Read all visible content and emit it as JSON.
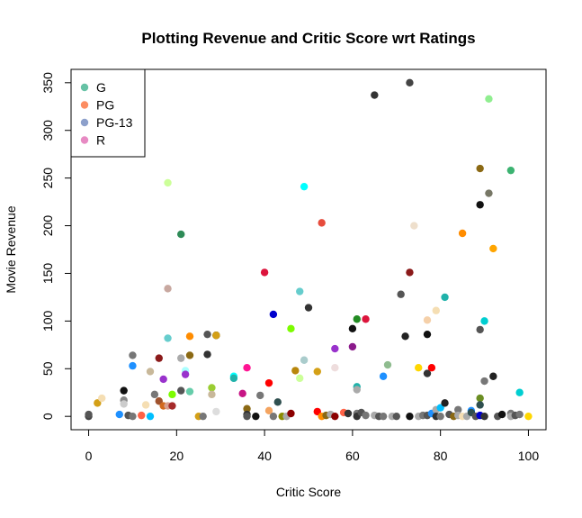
{
  "chart_data": {
    "type": "scatter",
    "title": "Plotting Revenue and Critic Score wrt Ratings",
    "xlabel": "Critic Score",
    "ylabel": "Movie Revenue",
    "xlim": [
      -4,
      104
    ],
    "ylim": [
      -14,
      364
    ],
    "xticks": [
      0,
      20,
      40,
      60,
      80,
      100
    ],
    "yticks": [
      0,
      50,
      100,
      150,
      200,
      250,
      300,
      350
    ],
    "grid": false,
    "legend": {
      "placement": "top-left",
      "entries": [
        {
          "label": "G",
          "color": "#66c2a5"
        },
        {
          "label": "PG",
          "color": "#fc8d62"
        },
        {
          "label": "PG-13",
          "color": "#8da0cb"
        },
        {
          "label": "R",
          "color": "#e78ac3"
        }
      ]
    },
    "points": [
      {
        "x": 0,
        "y": 0,
        "color": "#444444"
      },
      {
        "x": 0,
        "y": 2,
        "color": "#555555"
      },
      {
        "x": 2,
        "y": 14,
        "color": "#d4a017"
      },
      {
        "x": 3,
        "y": 19,
        "color": "#f5deb3"
      },
      {
        "x": 7,
        "y": 2,
        "color": "#1e90ff"
      },
      {
        "x": 8,
        "y": 27,
        "color": "#111111"
      },
      {
        "x": 8,
        "y": 17,
        "color": "#888888"
      },
      {
        "x": 8,
        "y": 13,
        "color": "#cccccc"
      },
      {
        "x": 9,
        "y": 1,
        "color": "#555555"
      },
      {
        "x": 10,
        "y": 64,
        "color": "#777777"
      },
      {
        "x": 10,
        "y": 53,
        "color": "#1e90ff"
      },
      {
        "x": 10,
        "y": 0,
        "color": "#777777"
      },
      {
        "x": 12,
        "y": 1,
        "color": "#ff6347"
      },
      {
        "x": 13,
        "y": 12,
        "color": "#f5deb3"
      },
      {
        "x": 14,
        "y": 47,
        "color": "#c8b89a"
      },
      {
        "x": 14,
        "y": 0,
        "color": "#00bfff"
      },
      {
        "x": 15,
        "y": 23,
        "color": "#777777"
      },
      {
        "x": 16,
        "y": 61,
        "color": "#8b1a1a"
      },
      {
        "x": 16,
        "y": 16,
        "color": "#a0522d"
      },
      {
        "x": 17,
        "y": 39,
        "color": "#9932cc"
      },
      {
        "x": 17,
        "y": 11,
        "color": "#d2691e"
      },
      {
        "x": 18,
        "y": 245,
        "color": "#ccff99"
      },
      {
        "x": 18,
        "y": 134,
        "color": "#c8a8a0"
      },
      {
        "x": 18,
        "y": 82,
        "color": "#66cdcd"
      },
      {
        "x": 18,
        "y": 11,
        "color": "#d8a090"
      },
      {
        "x": 19,
        "y": 23,
        "color": "#7cfc00"
      },
      {
        "x": 19,
        "y": 11,
        "color": "#a52a2a"
      },
      {
        "x": 21,
        "y": 191,
        "color": "#2e8b57"
      },
      {
        "x": 21,
        "y": 61,
        "color": "#aaaaaa"
      },
      {
        "x": 21,
        "y": 27,
        "color": "#555555"
      },
      {
        "x": 22,
        "y": 48,
        "color": "#aaffff"
      },
      {
        "x": 22,
        "y": 44,
        "color": "#9932cc"
      },
      {
        "x": 23,
        "y": 84,
        "color": "#ff8c00"
      },
      {
        "x": 23,
        "y": 64,
        "color": "#8b6914"
      },
      {
        "x": 23,
        "y": 26,
        "color": "#66cdaa"
      },
      {
        "x": 25,
        "y": 0,
        "color": "#d4a017"
      },
      {
        "x": 26,
        "y": 0,
        "color": "#777777"
      },
      {
        "x": 27,
        "y": 86,
        "color": "#555555"
      },
      {
        "x": 27,
        "y": 65,
        "color": "#333333"
      },
      {
        "x": 28,
        "y": 30,
        "color": "#9acd32"
      },
      {
        "x": 28,
        "y": 23,
        "color": "#c8b89a"
      },
      {
        "x": 29,
        "y": 85,
        "color": "#111111"
      },
      {
        "x": 29,
        "y": 85,
        "color": "#d4a017"
      },
      {
        "x": 29,
        "y": 5,
        "color": "#dddddd"
      },
      {
        "x": 33,
        "y": 42,
        "color": "#00ffff"
      },
      {
        "x": 33,
        "y": 40,
        "color": "#20b2aa"
      },
      {
        "x": 35,
        "y": 24,
        "color": "#c71585"
      },
      {
        "x": 36,
        "y": 51,
        "color": "#ff1493"
      },
      {
        "x": 36,
        "y": 8,
        "color": "#8b6914"
      },
      {
        "x": 36,
        "y": 2,
        "color": "#333333"
      },
      {
        "x": 36,
        "y": 0,
        "color": "#555555"
      },
      {
        "x": 38,
        "y": 0,
        "color": "#111111"
      },
      {
        "x": 39,
        "y": 22,
        "color": "#777777"
      },
      {
        "x": 40,
        "y": 151,
        "color": "#dc143c"
      },
      {
        "x": 41,
        "y": 35,
        "color": "#ff0000"
      },
      {
        "x": 41,
        "y": 6,
        "color": "#f4a460"
      },
      {
        "x": 42,
        "y": 107,
        "color": "#0000cd"
      },
      {
        "x": 42,
        "y": 0,
        "color": "#777777"
      },
      {
        "x": 43,
        "y": 15,
        "color": "#2f4f4f"
      },
      {
        "x": 44,
        "y": 0,
        "color": "#8b8b00"
      },
      {
        "x": 45,
        "y": 0,
        "color": "#aaaaaa"
      },
      {
        "x": 46,
        "y": 92,
        "color": "#7cfc00"
      },
      {
        "x": 46,
        "y": 3,
        "color": "#8b0000"
      },
      {
        "x": 47,
        "y": 48,
        "color": "#b8860b"
      },
      {
        "x": 48,
        "y": 131,
        "color": "#66cdcd"
      },
      {
        "x": 48,
        "y": 40,
        "color": "#ccff99"
      },
      {
        "x": 49,
        "y": 241,
        "color": "#00ffff"
      },
      {
        "x": 49,
        "y": 59,
        "color": "#aacccc"
      },
      {
        "x": 50,
        "y": 114,
        "color": "#333333"
      },
      {
        "x": 52,
        "y": 47,
        "color": "#d4a017"
      },
      {
        "x": 52,
        "y": 5,
        "color": "#ff0000"
      },
      {
        "x": 53,
        "y": 203,
        "color": "#e74c3c"
      },
      {
        "x": 53,
        "y": 0,
        "color": "#ff8c00"
      },
      {
        "x": 54,
        "y": 1,
        "color": "#8b6914"
      },
      {
        "x": 55,
        "y": 2,
        "color": "#aaaaaa"
      },
      {
        "x": 56,
        "y": 71,
        "color": "#9932cc"
      },
      {
        "x": 56,
        "y": 51,
        "color": "#eedddd"
      },
      {
        "x": 56,
        "y": 0,
        "color": "#8b0000"
      },
      {
        "x": 58,
        "y": 4,
        "color": "#ff6347"
      },
      {
        "x": 59,
        "y": 3,
        "color": "#333333"
      },
      {
        "x": 60,
        "y": 92,
        "color": "#111111"
      },
      {
        "x": 60,
        "y": 73,
        "color": "#8b1a8b"
      },
      {
        "x": 61,
        "y": 102,
        "color": "#228b22"
      },
      {
        "x": 61,
        "y": 31,
        "color": "#20b2aa"
      },
      {
        "x": 61,
        "y": 28,
        "color": "#aaaaaa"
      },
      {
        "x": 61,
        "y": 3,
        "color": "#777777"
      },
      {
        "x": 61,
        "y": 0,
        "color": "#333333"
      },
      {
        "x": 62,
        "y": 4,
        "color": "#555555"
      },
      {
        "x": 63,
        "y": 102,
        "color": "#dc143c"
      },
      {
        "x": 63,
        "y": 1,
        "color": "#777777"
      },
      {
        "x": 65,
        "y": 337,
        "color": "#333333"
      },
      {
        "x": 65,
        "y": 1,
        "color": "#aaaaaa"
      },
      {
        "x": 66,
        "y": 0,
        "color": "#555555"
      },
      {
        "x": 67,
        "y": 42,
        "color": "#1e90ff"
      },
      {
        "x": 67,
        "y": 0,
        "color": "#777777"
      },
      {
        "x": 68,
        "y": 54,
        "color": "#8fbc8f"
      },
      {
        "x": 69,
        "y": 0,
        "color": "#aaaaaa"
      },
      {
        "x": 70,
        "y": 0,
        "color": "#555555"
      },
      {
        "x": 71,
        "y": 128,
        "color": "#555555"
      },
      {
        "x": 72,
        "y": 84,
        "color": "#222222"
      },
      {
        "x": 73,
        "y": 350,
        "color": "#444444"
      },
      {
        "x": 73,
        "y": 151,
        "color": "#8b1a1a"
      },
      {
        "x": 73,
        "y": 0,
        "color": "#111111"
      },
      {
        "x": 74,
        "y": 200,
        "color": "#eedfcc"
      },
      {
        "x": 75,
        "y": 51,
        "color": "#ffd700"
      },
      {
        "x": 75,
        "y": 0,
        "color": "#aaaaaa"
      },
      {
        "x": 76,
        "y": 1,
        "color": "#777777"
      },
      {
        "x": 77,
        "y": 101,
        "color": "#f5d0a9"
      },
      {
        "x": 77,
        "y": 86,
        "color": "#111111"
      },
      {
        "x": 77,
        "y": 45,
        "color": "#333333"
      },
      {
        "x": 77,
        "y": 1,
        "color": "#555555"
      },
      {
        "x": 78,
        "y": 51,
        "color": "#ff0000"
      },
      {
        "x": 78,
        "y": 3,
        "color": "#1e90ff"
      },
      {
        "x": 79,
        "y": 111,
        "color": "#f5deb3"
      },
      {
        "x": 79,
        "y": 7,
        "color": "#aaaaaa"
      },
      {
        "x": 79,
        "y": 0,
        "color": "#333333"
      },
      {
        "x": 80,
        "y": 9,
        "color": "#00bfff"
      },
      {
        "x": 80,
        "y": 0,
        "color": "#777777"
      },
      {
        "x": 81,
        "y": 125,
        "color": "#20b2aa"
      },
      {
        "x": 81,
        "y": 14,
        "color": "#222222"
      },
      {
        "x": 82,
        "y": 2,
        "color": "#555555"
      },
      {
        "x": 83,
        "y": 0,
        "color": "#8b6914"
      },
      {
        "x": 84,
        "y": 7,
        "color": "#777777"
      },
      {
        "x": 84,
        "y": 1,
        "color": "#aaaaaa"
      },
      {
        "x": 85,
        "y": 192,
        "color": "#ff8c00"
      },
      {
        "x": 85,
        "y": 0,
        "color": "#f5deb3"
      },
      {
        "x": 86,
        "y": 0,
        "color": "#aaaaaa"
      },
      {
        "x": 87,
        "y": 6,
        "color": "#1e90ff"
      },
      {
        "x": 87,
        "y": 4,
        "color": "#2f4f4f"
      },
      {
        "x": 88,
        "y": 0,
        "color": "#555555"
      },
      {
        "x": 89,
        "y": 260,
        "color": "#8b6914"
      },
      {
        "x": 89,
        "y": 222,
        "color": "#111111"
      },
      {
        "x": 89,
        "y": 91,
        "color": "#555555"
      },
      {
        "x": 89,
        "y": 19,
        "color": "#6b8e23"
      },
      {
        "x": 89,
        "y": 12,
        "color": "#2f4f4f"
      },
      {
        "x": 89,
        "y": 1,
        "color": "#0000cd"
      },
      {
        "x": 90,
        "y": 100,
        "color": "#00ced1"
      },
      {
        "x": 90,
        "y": 37,
        "color": "#777777"
      },
      {
        "x": 90,
        "y": 0,
        "color": "#333333"
      },
      {
        "x": 91,
        "y": 333,
        "color": "#90ee90"
      },
      {
        "x": 91,
        "y": 234,
        "color": "#777766"
      },
      {
        "x": 92,
        "y": 176,
        "color": "#ffa500"
      },
      {
        "x": 92,
        "y": 42,
        "color": "#222222"
      },
      {
        "x": 93,
        "y": 0,
        "color": "#555555"
      },
      {
        "x": 94,
        "y": 2,
        "color": "#111111"
      },
      {
        "x": 96,
        "y": 258,
        "color": "#3cb371"
      },
      {
        "x": 96,
        "y": 3,
        "color": "#777777"
      },
      {
        "x": 96,
        "y": 0,
        "color": "#aaaaaa"
      },
      {
        "x": 97,
        "y": 1,
        "color": "#555555"
      },
      {
        "x": 98,
        "y": 25,
        "color": "#00ced1"
      },
      {
        "x": 98,
        "y": 2,
        "color": "#777777"
      },
      {
        "x": 100,
        "y": 0,
        "color": "#ffd700"
      }
    ]
  }
}
